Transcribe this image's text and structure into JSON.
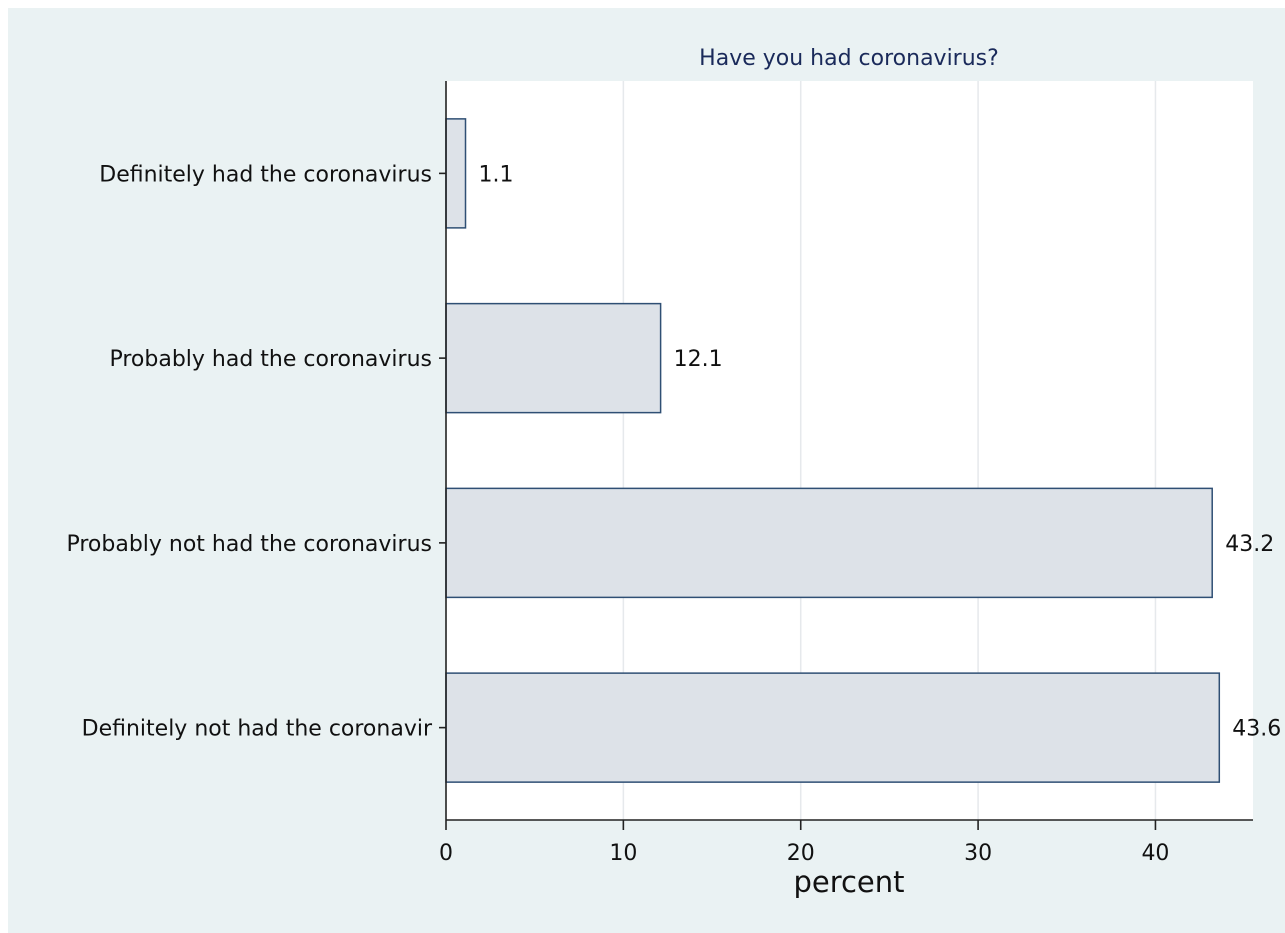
{
  "chart_data": {
    "type": "bar",
    "orientation": "horizontal",
    "title": "Have you had coronavirus?",
    "xlabel": "percent",
    "ylabel": "",
    "categories": [
      "Definitely had the coronavirus",
      "Probably had the coronavirus",
      "Probably not had the coronavirus",
      "Definitely not had the coronavir"
    ],
    "values": [
      1.1,
      12.1,
      43.2,
      43.6
    ],
    "value_labels": [
      "1.1",
      "12.1",
      "43.2",
      "43.6"
    ],
    "xlim": [
      0,
      45.5
    ],
    "xticks": [
      0,
      10,
      20,
      30,
      40
    ],
    "xtick_labels": [
      "0",
      "10",
      "20",
      "30",
      "40"
    ],
    "grid": "vertical",
    "colors": {
      "frame_background": "#eaf2f3",
      "plot_background": "#ffffff",
      "bar_fill": "#dde2e8",
      "bar_stroke": "#2f4f74",
      "grid": "#e6e9ec",
      "title": "#1a2a5a"
    }
  }
}
